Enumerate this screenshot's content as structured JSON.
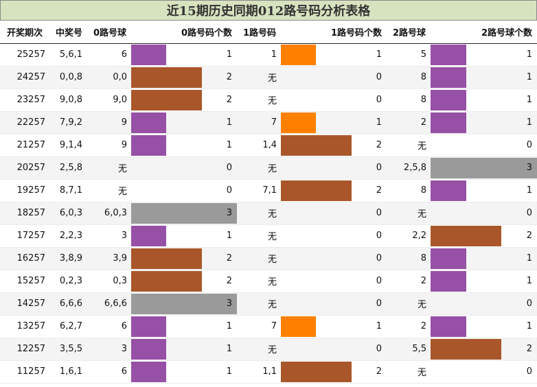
{
  "title": "近15期历史同期012路号码分析表格",
  "headers": {
    "issue": "开奖期次",
    "draw": "中奖号",
    "r0": "0路号球",
    "r0c": "0路号码个数",
    "r1": "1路号码",
    "r1c": "1路号码个数",
    "r2": "2路号球",
    "r2c": "2路号球个数"
  },
  "colors": {
    "count_1": "#9650a6",
    "count_2": "#a9572a",
    "count_3": "#9a9a9a",
    "route1_count_1": "#ff8000",
    "header_bg": "#d7e3bf"
  },
  "max_count": 3,
  "rows": [
    {
      "issue": "25257",
      "draw": "5,6,1",
      "r0": "6",
      "r0c": 1,
      "r1": "1",
      "r1c": 1,
      "r2": "5",
      "r2c": 1
    },
    {
      "issue": "24257",
      "draw": "0,0,8",
      "r0": "0,0",
      "r0c": 2,
      "r1": "无",
      "r1c": 0,
      "r2": "8",
      "r2c": 1
    },
    {
      "issue": "23257",
      "draw": "9,0,8",
      "r0": "9,0",
      "r0c": 2,
      "r1": "无",
      "r1c": 0,
      "r2": "8",
      "r2c": 1
    },
    {
      "issue": "22257",
      "draw": "7,9,2",
      "r0": "9",
      "r0c": 1,
      "r1": "7",
      "r1c": 1,
      "r2": "2",
      "r2c": 1
    },
    {
      "issue": "21257",
      "draw": "9,1,4",
      "r0": "9",
      "r0c": 1,
      "r1": "1,4",
      "r1c": 2,
      "r2": "无",
      "r2c": 0
    },
    {
      "issue": "20257",
      "draw": "2,5,8",
      "r0": "无",
      "r0c": 0,
      "r1": "无",
      "r1c": 0,
      "r2": "2,5,8",
      "r2c": 3
    },
    {
      "issue": "19257",
      "draw": "8,7,1",
      "r0": "无",
      "r0c": 0,
      "r1": "7,1",
      "r1c": 2,
      "r2": "8",
      "r2c": 1
    },
    {
      "issue": "18257",
      "draw": "6,0,3",
      "r0": "6,0,3",
      "r0c": 3,
      "r1": "无",
      "r1c": 0,
      "r2": "无",
      "r2c": 0
    },
    {
      "issue": "17257",
      "draw": "2,2,3",
      "r0": "3",
      "r0c": 1,
      "r1": "无",
      "r1c": 0,
      "r2": "2,2",
      "r2c": 2
    },
    {
      "issue": "16257",
      "draw": "3,8,9",
      "r0": "3,9",
      "r0c": 2,
      "r1": "无",
      "r1c": 0,
      "r2": "8",
      "r2c": 1
    },
    {
      "issue": "15257",
      "draw": "0,2,3",
      "r0": "0,3",
      "r0c": 2,
      "r1": "无",
      "r1c": 0,
      "r2": "2",
      "r2c": 1
    },
    {
      "issue": "14257",
      "draw": "6,6,6",
      "r0": "6,6,6",
      "r0c": 3,
      "r1": "无",
      "r1c": 0,
      "r2": "无",
      "r2c": 0
    },
    {
      "issue": "13257",
      "draw": "6,2,7",
      "r0": "6",
      "r0c": 1,
      "r1": "7",
      "r1c": 1,
      "r2": "2",
      "r2c": 1
    },
    {
      "issue": "12257",
      "draw": "3,5,5",
      "r0": "3",
      "r0c": 1,
      "r1": "无",
      "r1c": 0,
      "r2": "5,5",
      "r2c": 2
    },
    {
      "issue": "11257",
      "draw": "1,6,1",
      "r0": "6",
      "r0c": 1,
      "r1": "1,1",
      "r1c": 2,
      "r2": "无",
      "r2c": 0
    }
  ]
}
